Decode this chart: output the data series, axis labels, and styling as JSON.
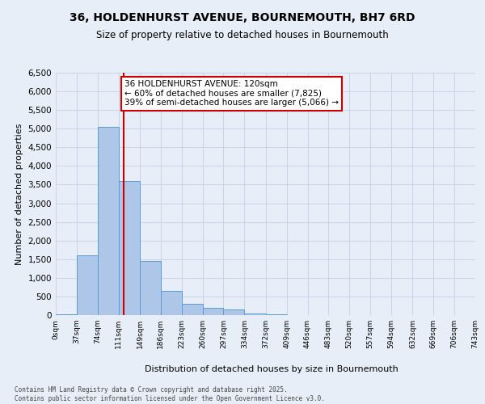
{
  "title": "36, HOLDENHURST AVENUE, BOURNEMOUTH, BH7 6RD",
  "subtitle": "Size of property relative to detached houses in Bournemouth",
  "xlabel": "Distribution of detached houses by size in Bournemouth",
  "ylabel": "Number of detached properties",
  "bin_edges": [
    0,
    37,
    74,
    111,
    149,
    186,
    223,
    260,
    297,
    334,
    372,
    409,
    446,
    483,
    520,
    557,
    594,
    632,
    669,
    706,
    743
  ],
  "bar_heights": [
    30,
    1600,
    5050,
    3600,
    1450,
    650,
    300,
    200,
    150,
    50,
    20,
    5,
    2,
    0,
    0,
    0,
    0,
    0,
    0,
    0
  ],
  "bar_color": "#aec6e8",
  "bar_edgecolor": "#5b9bd5",
  "property_size": 120,
  "property_line_color": "#cc0000",
  "annotation_text": "36 HOLDENHURST AVENUE: 120sqm\n← 60% of detached houses are smaller (7,825)\n39% of semi-detached houses are larger (5,066) →",
  "annotation_box_color": "#cc0000",
  "ylim": [
    0,
    6500
  ],
  "yticks": [
    0,
    500,
    1000,
    1500,
    2000,
    2500,
    3000,
    3500,
    4000,
    4500,
    5000,
    5500,
    6000,
    6500
  ],
  "grid_color": "#c8d4e8",
  "background_color": "#e8eef8",
  "footer_line1": "Contains HM Land Registry data © Crown copyright and database right 2025.",
  "footer_line2": "Contains public sector information licensed under the Open Government Licence v3.0."
}
